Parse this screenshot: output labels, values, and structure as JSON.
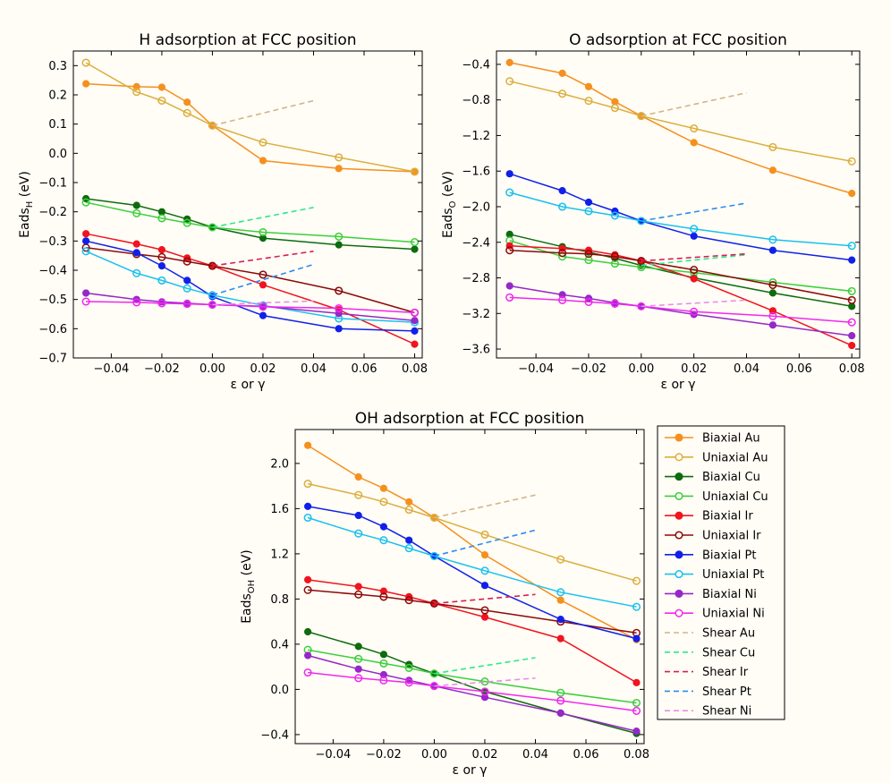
{
  "figure": {
    "xlabel_main": "ε or γ",
    "legend": [
      {
        "label": "Biaxial Au",
        "color": "#f5901e",
        "style": "filled"
      },
      {
        "label": "Uniaxial Au",
        "color": "#dcae3e",
        "style": "open"
      },
      {
        "label": "Biaxial Cu",
        "color": "#0e6b0e",
        "style": "filled"
      },
      {
        "label": "Uniaxial Cu",
        "color": "#3ccf3c",
        "style": "open"
      },
      {
        "label": "Biaxial Ir",
        "color": "#f0141e",
        "style": "filled"
      },
      {
        "label": "Uniaxial Ir",
        "color": "#8b0a0a",
        "style": "open"
      },
      {
        "label": "Biaxial Pt",
        "color": "#1020e8",
        "style": "filled"
      },
      {
        "label": "Uniaxial Pt",
        "color": "#18c0f0",
        "style": "open"
      },
      {
        "label": "Biaxial Ni",
        "color": "#9628c8",
        "style": "filled"
      },
      {
        "label": "Uniaxial Ni",
        "color": "#f028f0",
        "style": "open"
      },
      {
        "label": "Shear Au",
        "color": "#d2b48c",
        "style": "dashed"
      },
      {
        "label": "Shear Cu",
        "color": "#2ee88a",
        "style": "dashed"
      },
      {
        "label": "Shear Ir",
        "color": "#d81e52",
        "style": "dashed"
      },
      {
        "label": "Shear Pt",
        "color": "#2a8cf0",
        "style": "dashed"
      },
      {
        "label": "Shear Ni",
        "color": "#e78ee7",
        "style": "dashed"
      }
    ]
  },
  "chart_data": [
    {
      "id": "h",
      "type": "line",
      "title": "H adsorption at FCC position",
      "ylabel_main": "Eads",
      "ylabel_sub": "H",
      "ylabel_unit": " (eV)",
      "xlabel": "ε or γ",
      "xlim": [
        -0.055,
        0.083
      ],
      "ylim": [
        -0.7,
        0.35
      ],
      "xticks": [
        -0.04,
        -0.02,
        0.0,
        0.02,
        0.04,
        0.06,
        0.08
      ],
      "xtick_labels": [
        "−0.04",
        "−0.02",
        "0.00",
        "0.02",
        "0.04",
        "0.06",
        "0.08"
      ],
      "yticks": [
        0.3,
        0.2,
        0.1,
        0.0,
        -0.1,
        -0.2,
        -0.3,
        -0.4,
        -0.5,
        -0.6,
        -0.7
      ],
      "ytick_labels": [
        "0.3",
        "0.2",
        "0.1",
        "0.0",
        "−0.1",
        "−0.2",
        "−0.3",
        "−0.4",
        "−0.5",
        "−0.6",
        "−0.7"
      ],
      "series": [
        {
          "name": "Biaxial Au",
          "x": [
            -0.05,
            -0.03,
            -0.02,
            -0.01,
            0.0,
            0.02,
            0.05,
            0.08
          ],
          "y": [
            0.238,
            0.228,
            0.226,
            0.175,
            0.095,
            -0.025,
            -0.052,
            -0.063
          ]
        },
        {
          "name": "Uniaxial Au",
          "x": [
            -0.05,
            -0.03,
            -0.02,
            -0.01,
            0.0,
            0.02,
            0.05,
            0.08
          ],
          "y": [
            0.31,
            0.21,
            0.18,
            0.138,
            0.095,
            0.037,
            -0.014,
            -0.063
          ]
        },
        {
          "name": "Biaxial Cu",
          "x": [
            -0.05,
            -0.03,
            -0.02,
            -0.01,
            0.0,
            0.02,
            0.05,
            0.08
          ],
          "y": [
            -0.155,
            -0.178,
            -0.2,
            -0.225,
            -0.253,
            -0.29,
            -0.313,
            -0.328
          ]
        },
        {
          "name": "Uniaxial Cu",
          "x": [
            -0.05,
            -0.03,
            -0.02,
            -0.01,
            0.0,
            0.02,
            0.05,
            0.08
          ],
          "y": [
            -0.168,
            -0.205,
            -0.222,
            -0.238,
            -0.253,
            -0.27,
            -0.285,
            -0.304
          ]
        },
        {
          "name": "Biaxial Ir",
          "x": [
            -0.05,
            -0.03,
            -0.02,
            -0.01,
            0.0,
            0.02,
            0.05,
            0.08
          ],
          "y": [
            -0.275,
            -0.31,
            -0.33,
            -0.358,
            -0.385,
            -0.45,
            -0.535,
            -0.653
          ]
        },
        {
          "name": "Uniaxial Ir",
          "x": [
            -0.05,
            -0.03,
            -0.02,
            -0.01,
            0.0,
            0.02,
            0.05,
            0.08
          ],
          "y": [
            -0.323,
            -0.345,
            -0.355,
            -0.37,
            -0.385,
            -0.415,
            -0.47,
            -0.545
          ]
        },
        {
          "name": "Biaxial Pt",
          "x": [
            -0.05,
            -0.03,
            -0.02,
            -0.01,
            0.0,
            0.02,
            0.05,
            0.08
          ],
          "y": [
            -0.3,
            -0.34,
            -0.385,
            -0.435,
            -0.49,
            -0.555,
            -0.6,
            -0.608
          ]
        },
        {
          "name": "Uniaxial Pt",
          "x": [
            -0.05,
            -0.03,
            -0.02,
            -0.01,
            0.0,
            0.02,
            0.05,
            0.08
          ],
          "y": [
            -0.335,
            -0.41,
            -0.435,
            -0.462,
            -0.485,
            -0.52,
            -0.565,
            -0.578
          ]
        },
        {
          "name": "Biaxial Ni",
          "x": [
            -0.05,
            -0.03,
            -0.02,
            -0.01,
            0.0,
            0.02,
            0.05,
            0.08
          ],
          "y": [
            -0.478,
            -0.5,
            -0.508,
            -0.513,
            -0.518,
            -0.523,
            -0.548,
            -0.572
          ]
        },
        {
          "name": "Uniaxial Ni",
          "x": [
            -0.05,
            -0.03,
            -0.02,
            -0.01,
            0.0,
            0.02,
            0.05,
            0.08
          ],
          "y": [
            -0.507,
            -0.51,
            -0.513,
            -0.515,
            -0.518,
            -0.525,
            -0.53,
            -0.545
          ]
        },
        {
          "name": "Shear Au",
          "x": [
            0.0,
            0.04
          ],
          "y": [
            0.095,
            0.18
          ]
        },
        {
          "name": "Shear Cu",
          "x": [
            0.0,
            0.04
          ],
          "y": [
            -0.253,
            -0.185
          ]
        },
        {
          "name": "Shear Ir",
          "x": [
            0.0,
            0.04
          ],
          "y": [
            -0.385,
            -0.335
          ]
        },
        {
          "name": "Shear Pt",
          "x": [
            0.0,
            0.04
          ],
          "y": [
            -0.485,
            -0.38
          ]
        },
        {
          "name": "Shear Ni",
          "x": [
            0.0,
            0.04
          ],
          "y": [
            -0.518,
            -0.505
          ]
        }
      ]
    },
    {
      "id": "o",
      "type": "line",
      "title": "O adsorption at FCC position",
      "ylabel_main": "Eads",
      "ylabel_sub": "O",
      "ylabel_unit": " (eV)",
      "xlabel": "ε or γ",
      "xlim": [
        -0.055,
        0.083
      ],
      "ylim": [
        -3.7,
        -0.25
      ],
      "xticks": [
        -0.04,
        -0.02,
        0.0,
        0.02,
        0.04,
        0.06,
        0.08
      ],
      "xtick_labels": [
        "−0.04",
        "−0.02",
        "0.00",
        "0.02",
        "0.04",
        "0.06",
        "0.08"
      ],
      "yticks": [
        -0.4,
        -0.8,
        -1.2,
        -1.6,
        -2.0,
        -2.4,
        -2.8,
        -3.2,
        -3.6
      ],
      "ytick_labels": [
        "−0.4",
        "−0.8",
        "−1.2",
        "−1.6",
        "−2.0",
        "−2.4",
        "−2.8",
        "−3.2",
        "−3.6"
      ],
      "series": [
        {
          "name": "Biaxial Au",
          "x": [
            -0.05,
            -0.03,
            -0.02,
            -0.01,
            0.0,
            0.02,
            0.05,
            0.08
          ],
          "y": [
            -0.38,
            -0.5,
            -0.65,
            -0.82,
            -0.98,
            -1.28,
            -1.59,
            -1.85
          ]
        },
        {
          "name": "Uniaxial Au",
          "x": [
            -0.05,
            -0.03,
            -0.02,
            -0.01,
            0.0,
            0.02,
            0.05,
            0.08
          ],
          "y": [
            -0.59,
            -0.73,
            -0.81,
            -0.89,
            -0.98,
            -1.12,
            -1.33,
            -1.49
          ]
        },
        {
          "name": "Biaxial Cu",
          "x": [
            -0.05,
            -0.03,
            -0.02,
            -0.01,
            0.0,
            0.02,
            0.05,
            0.08
          ],
          "y": [
            -2.31,
            -2.45,
            -2.51,
            -2.58,
            -2.66,
            -2.8,
            -2.97,
            -3.12
          ]
        },
        {
          "name": "Uniaxial Cu",
          "x": [
            -0.05,
            -0.03,
            -0.02,
            -0.01,
            0.0,
            0.02,
            0.05,
            0.08
          ],
          "y": [
            -2.38,
            -2.56,
            -2.6,
            -2.64,
            -2.68,
            -2.74,
            -2.85,
            -2.95
          ]
        },
        {
          "name": "Biaxial Ir",
          "x": [
            -0.05,
            -0.03,
            -0.02,
            -0.01,
            0.0,
            0.02,
            0.05,
            0.08
          ],
          "y": [
            -2.44,
            -2.47,
            -2.49,
            -2.54,
            -2.61,
            -2.81,
            -3.17,
            -3.56
          ]
        },
        {
          "name": "Uniaxial Ir",
          "x": [
            -0.05,
            -0.03,
            -0.02,
            -0.01,
            0.0,
            0.02,
            0.05,
            0.08
          ],
          "y": [
            -2.49,
            -2.52,
            -2.53,
            -2.56,
            -2.61,
            -2.71,
            -2.88,
            -3.05
          ]
        },
        {
          "name": "Biaxial Pt",
          "x": [
            -0.05,
            -0.03,
            -0.02,
            -0.01,
            0.0,
            0.02,
            0.05,
            0.08
          ],
          "y": [
            -1.63,
            -1.82,
            -1.95,
            -2.05,
            -2.16,
            -2.33,
            -2.49,
            -2.6
          ]
        },
        {
          "name": "Uniaxial Pt",
          "x": [
            -0.05,
            -0.03,
            -0.02,
            -0.01,
            0.0,
            0.02,
            0.05,
            0.08
          ],
          "y": [
            -1.84,
            -2.0,
            -2.05,
            -2.1,
            -2.16,
            -2.25,
            -2.37,
            -2.44
          ]
        },
        {
          "name": "Biaxial Ni",
          "x": [
            -0.05,
            -0.03,
            -0.02,
            -0.01,
            0.0,
            0.02,
            0.05,
            0.08
          ],
          "y": [
            -2.89,
            -2.99,
            -3.03,
            -3.08,
            -3.12,
            -3.21,
            -3.33,
            -3.45
          ]
        },
        {
          "name": "Uniaxial Ni",
          "x": [
            -0.05,
            -0.03,
            -0.02,
            -0.01,
            0.0,
            0.02,
            0.05,
            0.08
          ],
          "y": [
            -3.02,
            -3.05,
            -3.07,
            -3.09,
            -3.12,
            -3.18,
            -3.23,
            -3.3
          ]
        },
        {
          "name": "Shear Au",
          "x": [
            0.0,
            0.04
          ],
          "y": [
            -0.98,
            -0.72
          ]
        },
        {
          "name": "Shear Cu",
          "x": [
            0.0,
            0.04
          ],
          "y": [
            -2.66,
            -2.54
          ]
        },
        {
          "name": "Shear Ir",
          "x": [
            0.0,
            0.04
          ],
          "y": [
            -2.61,
            -2.53
          ]
        },
        {
          "name": "Shear Pt",
          "x": [
            0.0,
            0.04
          ],
          "y": [
            -2.16,
            -1.96
          ]
        },
        {
          "name": "Shear Ni",
          "x": [
            0.0,
            0.04
          ],
          "y": [
            -3.12,
            -3.05
          ]
        }
      ]
    },
    {
      "id": "oh",
      "type": "line",
      "title": "OH adsorption at FCC position",
      "ylabel_main": "Eads",
      "ylabel_sub": "OH",
      "ylabel_unit": " (eV)",
      "xlabel": "ε or γ",
      "xlim": [
        -0.055,
        0.083
      ],
      "ylim": [
        -0.48,
        2.3
      ],
      "xticks": [
        -0.04,
        -0.02,
        0.0,
        0.02,
        0.04,
        0.06,
        0.08
      ],
      "xtick_labels": [
        "−0.04",
        "−0.02",
        "0.00",
        "0.02",
        "0.04",
        "0.06",
        "0.08"
      ],
      "yticks": [
        2.0,
        1.6,
        1.2,
        0.8,
        0.4,
        0.0,
        -0.4
      ],
      "ytick_labels": [
        "2.0",
        "1.6",
        "1.2",
        "0.8",
        "0.4",
        "0.0",
        "−0.4"
      ],
      "series": [
        {
          "name": "Biaxial Au",
          "x": [
            -0.05,
            -0.03,
            -0.02,
            -0.01,
            0.0,
            0.02,
            0.05,
            0.08
          ],
          "y": [
            2.16,
            1.88,
            1.78,
            1.66,
            1.52,
            1.19,
            0.79,
            0.44
          ]
        },
        {
          "name": "Uniaxial Au",
          "x": [
            -0.05,
            -0.03,
            -0.02,
            -0.01,
            0.0,
            0.02,
            0.05,
            0.08
          ],
          "y": [
            1.82,
            1.72,
            1.66,
            1.59,
            1.52,
            1.37,
            1.15,
            0.96
          ]
        },
        {
          "name": "Biaxial Cu",
          "x": [
            -0.05,
            -0.03,
            -0.02,
            -0.01,
            0.0,
            0.02,
            0.05,
            0.08
          ],
          "y": [
            0.51,
            0.38,
            0.31,
            0.22,
            0.14,
            -0.02,
            -0.21,
            -0.39
          ]
        },
        {
          "name": "Uniaxial Cu",
          "x": [
            -0.05,
            -0.03,
            -0.02,
            -0.01,
            0.0,
            0.02,
            0.05,
            0.08
          ],
          "y": [
            0.35,
            0.27,
            0.23,
            0.19,
            0.14,
            0.07,
            -0.03,
            -0.12
          ]
        },
        {
          "name": "Biaxial Ir",
          "x": [
            -0.05,
            -0.03,
            -0.02,
            -0.01,
            0.0,
            0.02,
            0.05,
            0.08
          ],
          "y": [
            0.97,
            0.91,
            0.87,
            0.82,
            0.76,
            0.64,
            0.45,
            0.06
          ]
        },
        {
          "name": "Uniaxial Ir",
          "x": [
            -0.05,
            -0.03,
            -0.02,
            -0.01,
            0.0,
            0.02,
            0.05,
            0.08
          ],
          "y": [
            0.88,
            0.84,
            0.82,
            0.79,
            0.76,
            0.7,
            0.6,
            0.5
          ]
        },
        {
          "name": "Biaxial Pt",
          "x": [
            -0.05,
            -0.03,
            -0.02,
            -0.01,
            0.0,
            0.02,
            0.05,
            0.08
          ],
          "y": [
            1.62,
            1.54,
            1.44,
            1.32,
            1.18,
            0.92,
            0.62,
            0.45
          ]
        },
        {
          "name": "Uniaxial Pt",
          "x": [
            -0.05,
            -0.03,
            -0.02,
            -0.01,
            0.0,
            0.02,
            0.05,
            0.08
          ],
          "y": [
            1.52,
            1.38,
            1.32,
            1.25,
            1.18,
            1.05,
            0.86,
            0.73
          ]
        },
        {
          "name": "Biaxial Ni",
          "x": [
            -0.05,
            -0.03,
            -0.02,
            -0.01,
            0.0,
            0.02,
            0.05,
            0.08
          ],
          "y": [
            0.3,
            0.18,
            0.13,
            0.08,
            0.03,
            -0.07,
            -0.21,
            -0.37
          ]
        },
        {
          "name": "Uniaxial Ni",
          "x": [
            -0.05,
            -0.03,
            -0.02,
            -0.01,
            0.0,
            0.02,
            0.05,
            0.08
          ],
          "y": [
            0.15,
            0.1,
            0.08,
            0.06,
            0.03,
            -0.02,
            -0.1,
            -0.19
          ]
        },
        {
          "name": "Shear Au",
          "x": [
            0.0,
            0.04
          ],
          "y": [
            1.52,
            1.72
          ]
        },
        {
          "name": "Shear Cu",
          "x": [
            0.0,
            0.04
          ],
          "y": [
            0.14,
            0.28
          ]
        },
        {
          "name": "Shear Ir",
          "x": [
            0.0,
            0.04
          ],
          "y": [
            0.76,
            0.84
          ]
        },
        {
          "name": "Shear Pt",
          "x": [
            0.0,
            0.04
          ],
          "y": [
            1.18,
            1.41
          ]
        },
        {
          "name": "Shear Ni",
          "x": [
            0.0,
            0.04
          ],
          "y": [
            0.03,
            0.1
          ]
        }
      ]
    }
  ]
}
